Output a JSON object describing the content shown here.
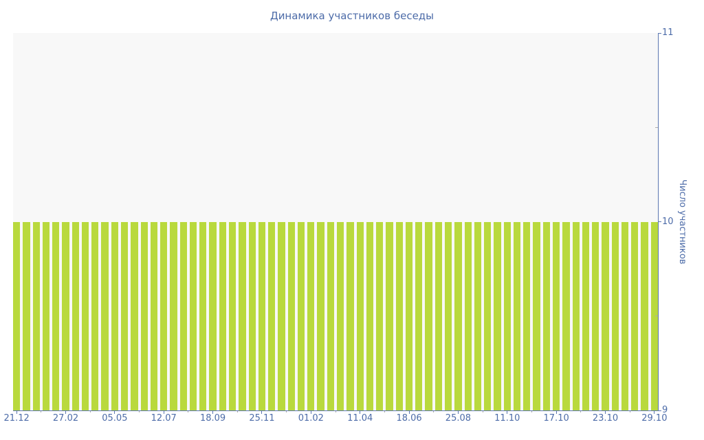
{
  "chart_data": {
    "type": "bar",
    "title": "Динамика участников беседы",
    "xlabel": "",
    "ylabel": "Число участников",
    "ylim": [
      9,
      11
    ],
    "yticks_major": [
      11,
      10,
      9
    ],
    "yticks_minor": [
      10.5,
      9.5
    ],
    "grid": false,
    "legend": null,
    "bar_count": 66,
    "bar_value": 10,
    "values": [
      10,
      10,
      10,
      10,
      10,
      10,
      10,
      10,
      10,
      10,
      10,
      10,
      10,
      10,
      10,
      10,
      10,
      10,
      10,
      10,
      10,
      10,
      10,
      10,
      10,
      10,
      10,
      10,
      10,
      10,
      10,
      10,
      10,
      10,
      10,
      10,
      10,
      10,
      10,
      10,
      10,
      10,
      10,
      10,
      10,
      10,
      10,
      10,
      10,
      10,
      10,
      10,
      10,
      10,
      10,
      10,
      10,
      10,
      10,
      10,
      10,
      10,
      10,
      10,
      10,
      10
    ],
    "x_tick_labels": [
      "21.12",
      "27.02",
      "05.05",
      "12.07",
      "18.09",
      "25.11",
      "01.02",
      "11.04",
      "18.06",
      "25.08",
      "11.10",
      "17.10",
      "23.10",
      "29.10"
    ],
    "x_tick_every_n_bars": 5,
    "colors": {
      "bar": "#b9d93d",
      "axis": "#5b76b0",
      "tick_label": "#4c6ba8",
      "title": "#4c6ba8",
      "plot_background": "#f8f8f8",
      "minor_tick": "#ababab",
      "page_background": "#ffffff"
    }
  }
}
